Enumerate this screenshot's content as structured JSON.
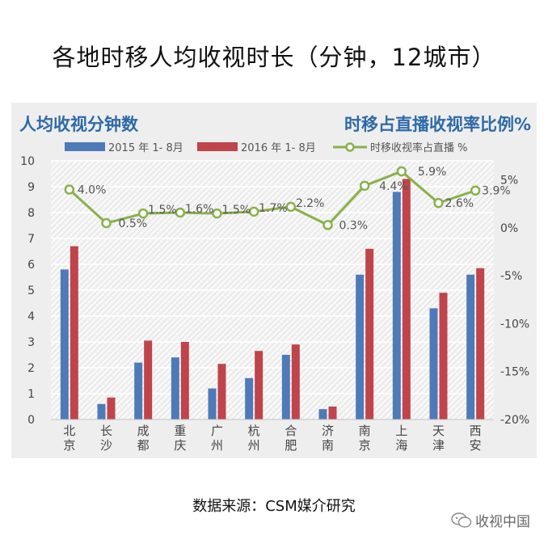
{
  "title": "各地时移人均收视时长（分钟，12城市）",
  "source_text": "数据来源：CSM媒介研究",
  "watermark_text": "收视中国",
  "colors": {
    "bar2015": "#4f7ab8",
    "bar2016": "#c0444b",
    "line": "#8ab04b",
    "heading": "#2f6aa8"
  },
  "chart_data": {
    "type": "bar",
    "left_heading": "人均收视分钟数",
    "right_heading": "时移占直播收视率比例%",
    "categories": [
      "北京",
      "长沙",
      "成都",
      "重庆",
      "广州",
      "杭州",
      "合肥",
      "济南",
      "南京",
      "上海",
      "天津",
      "西安"
    ],
    "category_chars": [
      [
        "北",
        "京"
      ],
      [
        "长",
        "沙"
      ],
      [
        "成",
        "都"
      ],
      [
        "重",
        "庆"
      ],
      [
        "广",
        "州"
      ],
      [
        "杭",
        "州"
      ],
      [
        "合",
        "肥"
      ],
      [
        "济",
        "南"
      ],
      [
        "南",
        "京"
      ],
      [
        "上",
        "海"
      ],
      [
        "天",
        "津"
      ],
      [
        "西",
        "安"
      ]
    ],
    "series": [
      {
        "name": "2015 年 1- 8月",
        "type": "bar",
        "axis": "left",
        "values": [
          5.8,
          0.6,
          2.2,
          2.4,
          1.2,
          1.6,
          2.5,
          0.4,
          5.6,
          8.8,
          4.3,
          5.6
        ]
      },
      {
        "name": "2016 年 1- 8月",
        "type": "bar",
        "axis": "left",
        "values": [
          6.7,
          0.85,
          3.05,
          3.0,
          2.15,
          2.65,
          2.9,
          0.5,
          6.6,
          9.3,
          4.9,
          5.85
        ]
      },
      {
        "name": "时移收视率占直播 %",
        "type": "line",
        "axis": "right",
        "values": [
          4.0,
          0.5,
          1.5,
          1.6,
          1.5,
          1.7,
          2.2,
          0.3,
          4.4,
          5.9,
          2.6,
          3.9
        ],
        "labels": [
          "4.0%",
          "0.5%",
          "1.5%",
          "1.6%",
          "1.5%",
          "1.7%",
          "2.2%",
          "0.3%",
          "4.4%",
          "5.9%",
          "2.6%",
          "3.9%"
        ]
      }
    ],
    "y_left": {
      "range": [
        0,
        10
      ],
      "ticks": [
        0,
        1,
        2,
        3,
        4,
        5,
        6,
        7,
        8,
        9,
        10
      ]
    },
    "y_right": {
      "range": [
        -20,
        7
      ],
      "ticks": [
        5,
        0,
        -5,
        -10,
        -15,
        -20
      ],
      "tick_labels": [
        "5%",
        "0%",
        "-5%",
        "-10%",
        "-15%",
        "-20%"
      ]
    },
    "grid": true,
    "legend_position": "top"
  }
}
